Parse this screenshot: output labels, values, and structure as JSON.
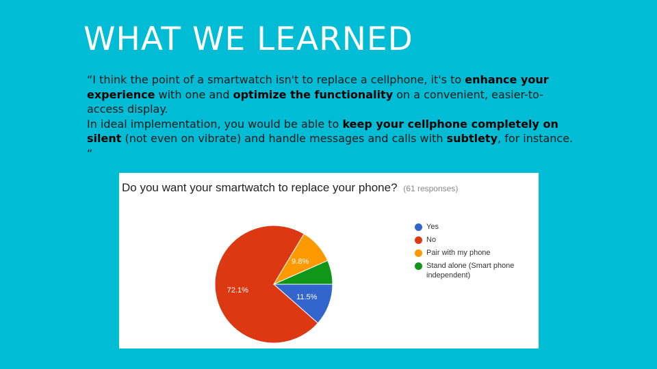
{
  "slide": {
    "title": "WHAT WE LEARNED"
  },
  "quote": {
    "p1": "“I think the point of a smartwatch isn't to replace a cellphone, it's to ",
    "b1": "enhance your experience",
    "p2": " with one and ",
    "b2": "optimize the functionality",
    "p3": " on a convenient, easier-to-access display.",
    "p4": "In ideal implementation, you would be able to ",
    "b3": "keep your cellphone completely on silent",
    "p5": " (not even on vibrate) and handle messages and calls with ",
    "b4": "subtlety",
    "p6": ", for instance. “"
  },
  "chart_data": {
    "type": "pie",
    "title": "Do you want your smartwatch to replace your phone?",
    "subtitle": "(61 responses)",
    "legend_position": "right",
    "slices": [
      {
        "label": "Yes",
        "value": 11.5,
        "display": "11.5%",
        "color": "#3366cc"
      },
      {
        "label": "No",
        "value": 72.1,
        "display": "72.1%",
        "color": "#dc3912"
      },
      {
        "label": "Pair with my phone",
        "value": 9.8,
        "display": "9.8%",
        "color": "#ff9900"
      },
      {
        "label": "Stand alone (Smart phone independent)",
        "value": 6.6,
        "display": "",
        "color": "#109618"
      }
    ]
  }
}
